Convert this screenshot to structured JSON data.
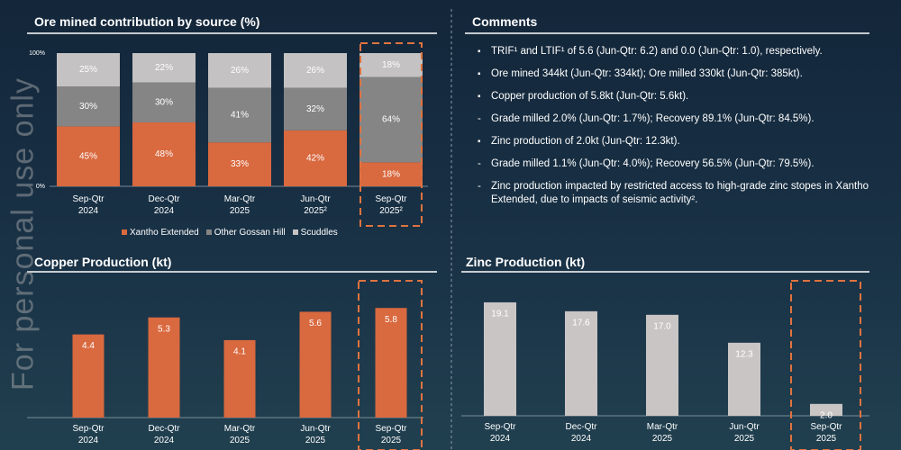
{
  "watermark": "For personal use only",
  "chart_data": [
    {
      "type": "stacked_bar",
      "title": "Ore mined contribution by source (%)",
      "categories": [
        "Sep-Qtr\n2024",
        "Dec-Qtr\n2024",
        "Mar-Qtr\n2025",
        "Jun-Qtr\n2025²",
        "Sep-Qtr\n2025²"
      ],
      "series": [
        {
          "name": "Xantho Extended",
          "color": "#d9693f",
          "values": [
            45,
            48,
            33,
            42,
            18
          ],
          "value_labels": [
            "45%",
            "48%",
            "33%",
            "42%",
            "18%"
          ]
        },
        {
          "name": "Other Gossan Hill",
          "color": "#858585",
          "values": [
            30,
            30,
            41,
            32,
            64
          ],
          "value_labels": [
            "30%",
            "30%",
            "41%",
            "32%",
            "64%"
          ]
        },
        {
          "name": "Scuddles",
          "color": "#c4c2c2",
          "values": [
            25,
            22,
            26,
            26,
            18
          ],
          "value_labels": [
            "25%",
            "22%",
            "26%",
            "26%",
            "18%"
          ]
        }
      ],
      "ylim": [
        0,
        100
      ],
      "yticks": [
        {
          "value": 0,
          "label": "0%"
        },
        {
          "value": 100,
          "label": "100%"
        }
      ]
    },
    {
      "type": "bar",
      "title": "Copper Production (kt)",
      "categories": [
        "Sep-Qtr\n2024",
        "Dec-Qtr\n2024",
        "Mar-Qtr\n2025",
        "Jun-Qtr\n2025",
        "Sep-Qtr\n2025"
      ],
      "values": [
        4.4,
        5.3,
        4.1,
        5.6,
        5.8
      ],
      "color": "#d9693f"
    },
    {
      "type": "bar",
      "title": "Zinc Production (kt)",
      "categories": [
        "Sep-Qtr\n2024",
        "Dec-Qtr\n2024",
        "Mar-Qtr\n2025",
        "Jun-Qtr\n2025",
        "Sep-Qtr\n2025"
      ],
      "values": [
        19.1,
        17.6,
        17.0,
        12.3,
        2.0
      ],
      "value_labels": [
        "19.1",
        "17.6",
        "17.0",
        "12.3",
        "2.0"
      ],
      "color": "#c9c5c5"
    }
  ],
  "comments": {
    "title": "Comments",
    "items": [
      {
        "text": "TRIF¹ and LTIF¹ of 5.6 (Jun-Qtr: 6.2) and 0.0 (Jun-Qtr: 1.0), respectively.",
        "sub": []
      },
      {
        "text": "Ore mined 344kt (Jun-Qtr: 334kt); Ore milled 330kt (Jun-Qtr: 385kt).",
        "sub": []
      },
      {
        "text": "Copper production of 5.8kt (Jun-Qtr: 5.6kt).",
        "sub": [
          "Grade milled 2.0% (Jun-Qtr: 1.7%); Recovery 89.1% (Jun-Qtr: 84.5%)."
        ]
      },
      {
        "text": "Zinc production of 2.0kt (Jun-Qtr: 12.3kt).",
        "sub": [
          "Grade milled 1.1% (Jun-Qtr: 4.0%); Recovery 56.5% (Jun-Qtr: 79.5%).",
          "Zinc production impacted by restricted access to high-grade zinc stopes in Xantho Extended, due to impacts of seismic activity²."
        ]
      }
    ]
  }
}
